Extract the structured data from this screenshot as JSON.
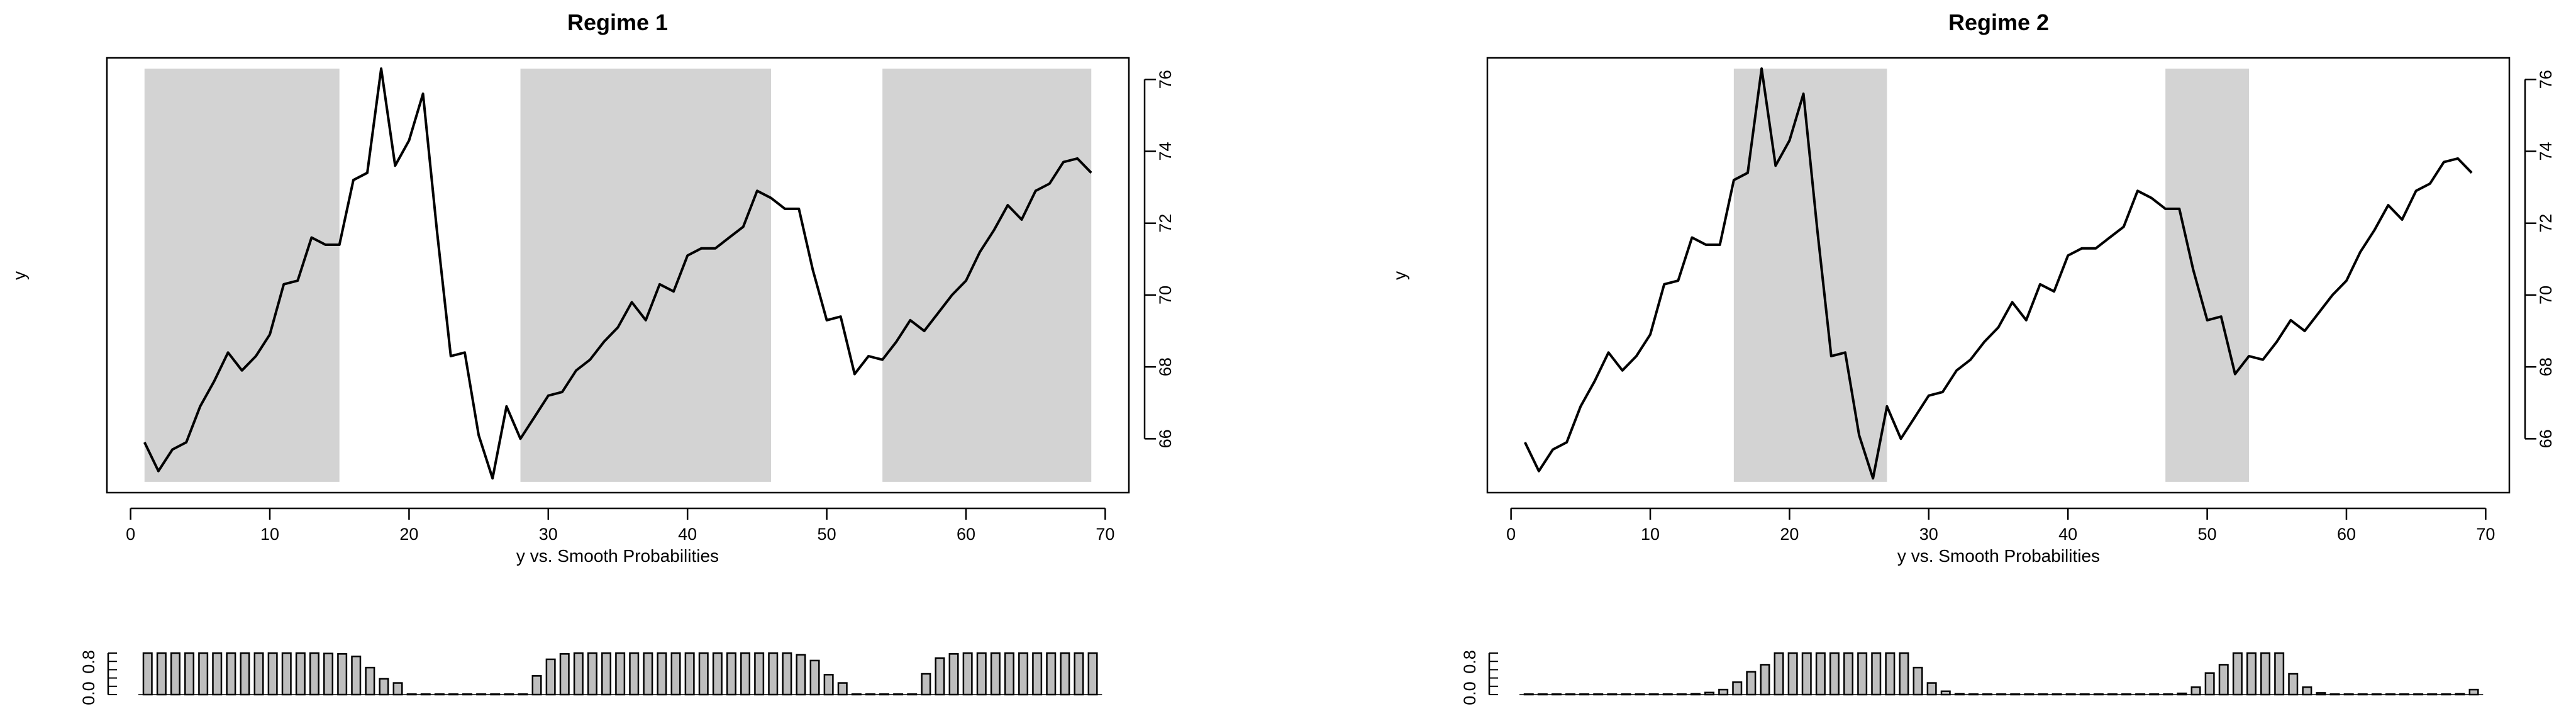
{
  "chart_data": [
    {
      "type": "line",
      "panel": "Regime 1",
      "title": "Regime 1",
      "xlabel": "y vs. Smooth Probabilities",
      "ylabel": "y",
      "xlim": [
        0,
        70
      ],
      "ylim": [
        64.8,
        76.3
      ],
      "x_ticks": [
        0,
        10,
        20,
        30,
        40,
        50,
        60,
        70
      ],
      "y_ticks": [
        66,
        68,
        70,
        72,
        74,
        76
      ],
      "y_axis_side": "right",
      "x": [
        1,
        2,
        3,
        4,
        5,
        6,
        7,
        8,
        9,
        10,
        11,
        12,
        13,
        14,
        15,
        16,
        17,
        18,
        19,
        20,
        21,
        22,
        23,
        24,
        25,
        26,
        27,
        28,
        29,
        30,
        31,
        32,
        33,
        34,
        35,
        36,
        37,
        38,
        39,
        40,
        41,
        42,
        43,
        44,
        45,
        46,
        47,
        48,
        49,
        50,
        51,
        52,
        53,
        54,
        55,
        56,
        57,
        58,
        59,
        60,
        61,
        62,
        63,
        64,
        65,
        66,
        67,
        68,
        69
      ],
      "values": [
        65.9,
        65.1,
        65.7,
        65.9,
        66.9,
        67.6,
        68.4,
        67.9,
        68.3,
        68.9,
        70.3,
        70.4,
        71.6,
        71.4,
        71.4,
        73.2,
        73.4,
        76.3,
        73.6,
        74.3,
        75.6,
        71.8,
        68.3,
        68.4,
        66.1,
        64.9,
        66.9,
        66.0,
        66.6,
        67.2,
        67.3,
        67.9,
        68.2,
        68.7,
        69.1,
        69.8,
        69.3,
        70.3,
        70.1,
        71.1,
        71.3,
        71.3,
        71.6,
        71.9,
        72.9,
        72.7,
        72.4,
        72.4,
        70.7,
        69.3,
        69.4,
        67.8,
        68.3,
        68.2,
        68.7,
        69.3,
        69.0,
        69.5,
        70.0,
        70.4,
        71.2,
        71.8,
        72.5,
        72.1,
        72.9,
        73.1,
        73.7,
        73.8,
        73.4
      ],
      "shaded_regions": [
        [
          1,
          15
        ],
        [
          28,
          46
        ],
        [
          54,
          69
        ]
      ],
      "probability_panel": {
        "y_ticks": [
          "0.0",
          "0.8"
        ],
        "bars": [
          1.0,
          1.0,
          1.0,
          1.0,
          1.0,
          1.0,
          1.0,
          1.0,
          1.0,
          1.0,
          1.0,
          1.0,
          1.0,
          0.99,
          0.98,
          0.92,
          0.65,
          0.38,
          0.28,
          0.0,
          0.0,
          0.0,
          0.0,
          0.0,
          0.0,
          0.0,
          0.0,
          0.0,
          0.45,
          0.85,
          0.98,
          1.0,
          1.0,
          1.0,
          1.0,
          1.0,
          1.0,
          1.0,
          1.0,
          1.0,
          1.0,
          1.0,
          1.0,
          1.0,
          1.0,
          1.0,
          1.0,
          0.96,
          0.82,
          0.48,
          0.28,
          0.0,
          0.0,
          0.0,
          0.0,
          0.0,
          0.5,
          0.88,
          0.98,
          1.0,
          1.0,
          1.0,
          1.0,
          1.0,
          1.0,
          1.0,
          1.0,
          1.0,
          1.0
        ]
      }
    },
    {
      "type": "line",
      "panel": "Regime 2",
      "title": "Regime 2",
      "xlabel": "y vs. Smooth Probabilities",
      "ylabel": "y",
      "xlim": [
        0,
        70
      ],
      "ylim": [
        64.8,
        76.3
      ],
      "x_ticks": [
        0,
        10,
        20,
        30,
        40,
        50,
        60,
        70
      ],
      "y_ticks": [
        66,
        68,
        70,
        72,
        74,
        76
      ],
      "y_axis_side": "right",
      "x": [
        1,
        2,
        3,
        4,
        5,
        6,
        7,
        8,
        9,
        10,
        11,
        12,
        13,
        14,
        15,
        16,
        17,
        18,
        19,
        20,
        21,
        22,
        23,
        24,
        25,
        26,
        27,
        28,
        29,
        30,
        31,
        32,
        33,
        34,
        35,
        36,
        37,
        38,
        39,
        40,
        41,
        42,
        43,
        44,
        45,
        46,
        47,
        48,
        49,
        50,
        51,
        52,
        53,
        54,
        55,
        56,
        57,
        58,
        59,
        60,
        61,
        62,
        63,
        64,
        65,
        66,
        67,
        68,
        69
      ],
      "values": [
        65.9,
        65.1,
        65.7,
        65.9,
        66.9,
        67.6,
        68.4,
        67.9,
        68.3,
        68.9,
        70.3,
        70.4,
        71.6,
        71.4,
        71.4,
        73.2,
        73.4,
        76.3,
        73.6,
        74.3,
        75.6,
        71.8,
        68.3,
        68.4,
        66.1,
        64.9,
        66.9,
        66.0,
        66.6,
        67.2,
        67.3,
        67.9,
        68.2,
        68.7,
        69.1,
        69.8,
        69.3,
        70.3,
        70.1,
        71.1,
        71.3,
        71.3,
        71.6,
        71.9,
        72.9,
        72.7,
        72.4,
        72.4,
        70.7,
        69.3,
        69.4,
        67.8,
        68.3,
        68.2,
        68.7,
        69.3,
        69.0,
        69.5,
        70.0,
        70.4,
        71.2,
        71.8,
        72.5,
        72.1,
        72.9,
        73.1,
        73.7,
        73.8,
        73.4
      ],
      "shaded_regions": [
        [
          16,
          27
        ],
        [
          47,
          53
        ]
      ],
      "probability_panel": {
        "y_ticks": [
          "0.0",
          "0.8"
        ],
        "bars": [
          0.0,
          0.0,
          0.0,
          0.0,
          0.0,
          0.0,
          0.0,
          0.0,
          0.0,
          0.0,
          0.0,
          0.01,
          0.02,
          0.05,
          0.12,
          0.3,
          0.55,
          0.72,
          1.0,
          1.0,
          1.0,
          1.0,
          1.0,
          1.0,
          1.0,
          1.0,
          1.0,
          1.0,
          0.65,
          0.28,
          0.08,
          0.02,
          0.0,
          0.0,
          0.0,
          0.0,
          0.0,
          0.0,
          0.0,
          0.0,
          0.0,
          0.0,
          0.0,
          0.0,
          0.0,
          0.0,
          0.0,
          0.03,
          0.18,
          0.52,
          0.72,
          1.0,
          1.0,
          1.0,
          1.0,
          0.5,
          0.18,
          0.04,
          0.0,
          0.0,
          0.0,
          0.0,
          0.0,
          0.0,
          0.0,
          0.0,
          0.0,
          0.02,
          0.12
        ]
      }
    }
  ]
}
